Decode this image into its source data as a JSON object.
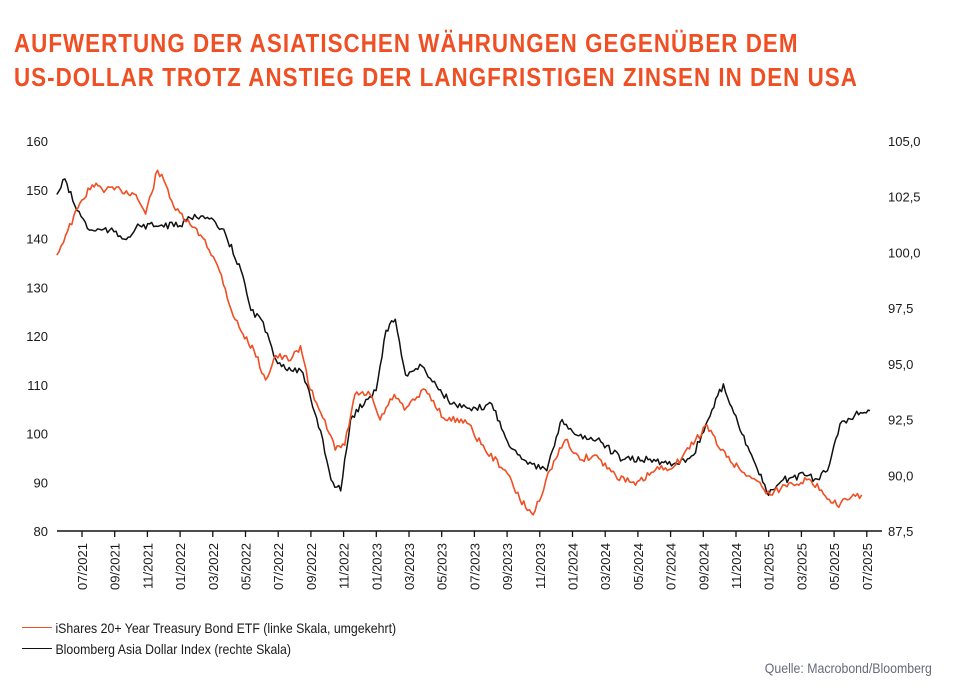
{
  "title": {
    "line1": "AUFWERTUNG DER ASIATISCHEN WÄHRUNGEN GEGENÜBER DEM",
    "line2": "US-DOLLAR TROTZ ANSTIEG DER LANGFRISTIGEN ZINSEN IN DEN USA"
  },
  "colors": {
    "title": "#f04e23",
    "series_red": "#f04e23",
    "series_black": "#111111",
    "axis": "#111111",
    "source_text": "#666a7a"
  },
  "legend": {
    "items": [
      {
        "label": "iShares 20+ Year Treasury Bond ETF (linke Skala, umgekehrt)",
        "color": "#f04e23"
      },
      {
        "label": "Bloomberg Asia Dollar Index (rechte Skala)",
        "color": "#111111"
      }
    ]
  },
  "source": "Quelle: Macrobond/Bloomberg",
  "chart_data": {
    "type": "line",
    "title": "AUFWERTUNG DER ASIATISCHEN WÄHRUNGEN GEGENÜBER DEM US-DOLLAR TROTZ ANSTIEG DER LANGFRISTIGEN ZINSEN IN DEN USA",
    "xlabel": "",
    "ylabel_left": "",
    "ylabel_right": "",
    "x_range": [
      "05/2021",
      "07/2025"
    ],
    "x_tick_labels": [
      "07/2021",
      "09/2021",
      "11/2021",
      "01/2022",
      "03/2022",
      "05/2022",
      "07/2022",
      "09/2022",
      "11/2022",
      "01/2023",
      "03/2023",
      "05/2023",
      "07/2023",
      "09/2023",
      "11/2023",
      "01/2024",
      "03/2024",
      "05/2024",
      "07/2024",
      "09/2024",
      "11/2024",
      "01/2025",
      "03/2025",
      "05/2025",
      "07/2025"
    ],
    "y_left": {
      "range": [
        80,
        160
      ],
      "ticks": [
        "160",
        "150",
        "140",
        "130",
        "120",
        "110",
        "100",
        "90",
        "80"
      ]
    },
    "y_right": {
      "range": [
        87.5,
        105.0
      ],
      "ticks": [
        "105,0",
        "102,5",
        "100,0",
        "97,5",
        "95,0",
        "92,5",
        "90,0",
        "87,5"
      ]
    },
    "grid": false,
    "legend_position": "bottom-left",
    "series": [
      {
        "name": "iShares 20+ Year Treasury Bond ETF (linke Skala, umgekehrt)",
        "axis": "left",
        "color": "#f04e23",
        "points": [
          [
            "2021-05-15",
            136.6
          ],
          [
            "2021-06-01",
            140.7
          ],
          [
            "2021-07-01",
            147.9
          ],
          [
            "2021-07-20",
            151.0
          ],
          [
            "2021-08-15",
            150.0
          ],
          [
            "2021-09-12",
            150.0
          ],
          [
            "2021-10-10",
            149.0
          ],
          [
            "2021-10-28",
            145.0
          ],
          [
            "2021-11-20",
            154.0
          ],
          [
            "2021-12-05",
            151.0
          ],
          [
            "2021-12-23",
            145.8
          ],
          [
            "2022-01-20",
            142.8
          ],
          [
            "2022-02-17",
            139.7
          ],
          [
            "2022-03-17",
            132.5
          ],
          [
            "2022-04-05",
            125.3
          ],
          [
            "2022-04-23",
            121.0
          ],
          [
            "2022-05-17",
            117.0
          ],
          [
            "2022-06-08",
            111.0
          ],
          [
            "2022-06-27",
            116.0
          ],
          [
            "2022-07-24",
            115.0
          ],
          [
            "2022-08-12",
            118.0
          ],
          [
            "2022-08-30",
            109.0
          ],
          [
            "2022-09-27",
            102.8
          ],
          [
            "2022-10-16",
            96.6
          ],
          [
            "2022-11-03",
            97.6
          ],
          [
            "2022-11-22",
            108.0
          ],
          [
            "2022-12-20",
            108.0
          ],
          [
            "2023-01-08",
            102.8
          ],
          [
            "2023-02-04",
            108.0
          ],
          [
            "2023-02-23",
            104.8
          ],
          [
            "2023-04-01",
            109.0
          ],
          [
            "2023-05-08",
            102.8
          ],
          [
            "2023-06-14",
            102.8
          ],
          [
            "2023-07-21",
            96.6
          ],
          [
            "2023-08-28",
            92.5
          ],
          [
            "2023-09-25",
            86.4
          ],
          [
            "2023-10-19",
            83.3
          ],
          [
            "2023-11-20",
            92.5
          ],
          [
            "2023-12-18",
            98.7
          ],
          [
            "2024-01-15",
            94.6
          ],
          [
            "2024-02-12",
            95.6
          ],
          [
            "2024-03-20",
            91.5
          ],
          [
            "2024-04-27",
            89.4
          ],
          [
            "2024-06-03",
            92.5
          ],
          [
            "2024-07-10",
            93.5
          ],
          [
            "2024-08-17",
            98.7
          ],
          [
            "2024-09-08",
            101.7
          ],
          [
            "2024-10-03",
            96.6
          ],
          [
            "2024-11-09",
            92.5
          ],
          [
            "2024-12-07",
            90.5
          ],
          [
            "2025-01-04",
            87.4
          ],
          [
            "2025-02-01",
            89.4
          ],
          [
            "2025-03-11",
            90.5
          ],
          [
            "2025-04-08",
            88.4
          ],
          [
            "2025-05-06",
            85.3
          ],
          [
            "2025-05-25",
            86.4
          ],
          [
            "2025-06-22",
            87.4
          ]
        ]
      },
      {
        "name": "Bloomberg Asia Dollar Index (rechte Skala)",
        "axis": "right",
        "color": "#111111",
        "points": [
          [
            "2021-05-15",
            102.6
          ],
          [
            "2021-05-30",
            103.3
          ],
          [
            "2021-06-18",
            102.1
          ],
          [
            "2021-07-15",
            101.0
          ],
          [
            "2021-08-22",
            101.0
          ],
          [
            "2021-09-19",
            100.6
          ],
          [
            "2021-10-17",
            101.2
          ],
          [
            "2021-11-24",
            101.2
          ],
          [
            "2021-12-31",
            101.2
          ],
          [
            "2022-01-28",
            101.7
          ],
          [
            "2022-02-25",
            101.5
          ],
          [
            "2022-03-25",
            100.8
          ],
          [
            "2022-04-23",
            99.2
          ],
          [
            "2022-05-11",
            97.4
          ],
          [
            "2022-05-30",
            97.0
          ],
          [
            "2022-06-27",
            95.2
          ],
          [
            "2022-07-25",
            94.7
          ],
          [
            "2022-08-13",
            94.7
          ],
          [
            "2022-09-01",
            93.4
          ],
          [
            "2022-09-19",
            92.0
          ],
          [
            "2022-10-08",
            89.8
          ],
          [
            "2022-10-26",
            89.3
          ],
          [
            "2022-11-14",
            92.5
          ],
          [
            "2022-12-12",
            93.4
          ],
          [
            "2022-12-31",
            93.8
          ],
          [
            "2023-01-19",
            96.5
          ],
          [
            "2023-02-06",
            97.0
          ],
          [
            "2023-02-25",
            94.5
          ],
          [
            "2023-03-25",
            94.9
          ],
          [
            "2023-04-22",
            94.0
          ],
          [
            "2023-05-20",
            93.2
          ],
          [
            "2023-06-26",
            92.9
          ],
          [
            "2023-08-03",
            93.2
          ],
          [
            "2023-09-09",
            91.2
          ],
          [
            "2023-10-17",
            90.5
          ],
          [
            "2023-11-14",
            90.2
          ],
          [
            "2023-12-12",
            92.5
          ],
          [
            "2024-01-09",
            91.8
          ],
          [
            "2024-02-16",
            91.6
          ],
          [
            "2024-04-03",
            90.7
          ],
          [
            "2024-05-20",
            90.7
          ],
          [
            "2024-07-06",
            90.5
          ],
          [
            "2024-08-13",
            90.9
          ],
          [
            "2024-09-10",
            92.5
          ],
          [
            "2024-10-08",
            94.1
          ],
          [
            "2024-11-05",
            92.3
          ],
          [
            "2024-12-03",
            90.7
          ],
          [
            "2024-12-31",
            89.1
          ],
          [
            "2025-01-28",
            89.8
          ],
          [
            "2025-03-07",
            90.0
          ],
          [
            "2025-04-04",
            89.8
          ],
          [
            "2025-04-23",
            90.5
          ],
          [
            "2025-05-12",
            92.3
          ],
          [
            "2025-06-09",
            92.7
          ],
          [
            "2025-07-07",
            92.9
          ]
        ]
      }
    ]
  }
}
